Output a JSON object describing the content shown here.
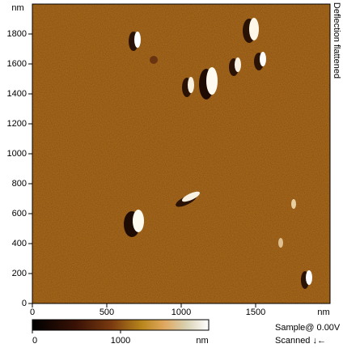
{
  "chart_data": {
    "type": "image",
    "x_label": "nm",
    "y_label": "nm",
    "xlim": [
      0,
      2000
    ],
    "ylim": [
      0,
      2000
    ],
    "xticks": [
      0,
      500,
      1000,
      1500
    ],
    "yticks": [
      0,
      200,
      400,
      600,
      800,
      1000,
      1200,
      1400,
      1600,
      1800
    ],
    "channel": "Deflection flattened",
    "colorbar": {
      "clim": [
        0,
        2000
      ],
      "ticks": [
        0,
        1000
      ],
      "label": "nm"
    },
    "info": [
      "Sample@ 0.00V",
      "Scanned ↓←"
    ]
  }
}
